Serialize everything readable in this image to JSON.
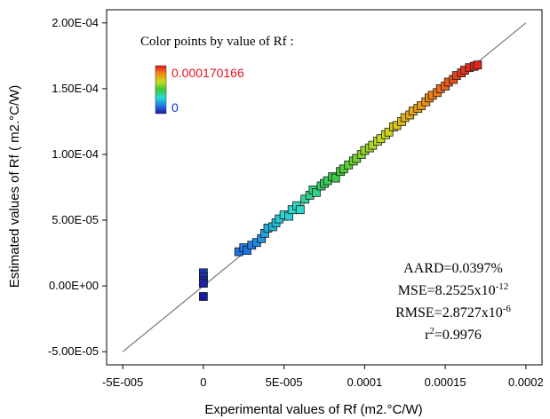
{
  "chart_data": {
    "type": "scatter",
    "xlabel": "Experimental values of Rf (m2.°C/W)",
    "ylabel": "Estimated values of Rf ( m2.°C/W)",
    "xlim": [
      -6e-05,
      0.00021
    ],
    "ylim": [
      -6e-05,
      0.00021
    ],
    "x_ticks": [
      -5e-05,
      0,
      5e-05,
      0.0001,
      0.00015,
      0.0002
    ],
    "x_tick_labels": [
      "-5E-005",
      "0",
      "5E-005",
      "0.0001",
      "0.00015",
      "0.0002"
    ],
    "y_ticks": [
      -5e-05,
      0,
      5e-05,
      0.0001,
      0.00015,
      0.0002
    ],
    "y_tick_labels": [
      "-5.00E-05",
      "0.00E+00",
      "5.00E-05",
      "1.00E-04",
      "1.50E-04",
      "2.00E-04"
    ],
    "grid": false,
    "reference_line": {
      "type": "y=x",
      "from": -5e-05,
      "to": 0.0002
    },
    "color_scale": {
      "title": "Color points by value of Rf :",
      "max_label": "0.000170166",
      "min_label": "0",
      "max": 0.000170166,
      "min": 0,
      "colors": [
        "#1a1aa0",
        "#1e78e6",
        "#28dcd2",
        "#3cc83c",
        "#c8dc1e",
        "#f08c14",
        "#dc1e1e"
      ],
      "max_label_color": "#e0141e",
      "min_label_color": "#1432c8"
    },
    "series": [
      {
        "points": [
          [
            0,
            1e-05
          ],
          [
            0,
            7e-06
          ],
          [
            0,
            4e-06
          ],
          [
            0,
            2e-06
          ],
          [
            0,
            -8e-06
          ],
          [
            2.2e-05,
            2.6e-05
          ],
          [
            2.5e-05,
            2.9e-05
          ],
          [
            2.7e-05,
            2.7e-05
          ],
          [
            3e-05,
            3.1e-05
          ],
          [
            3.3e-05,
            3.3e-05
          ],
          [
            3.6e-05,
            3.6e-05
          ],
          [
            3.8e-05,
            4e-05
          ],
          [
            4e-05,
            4.4e-05
          ],
          [
            4.3e-05,
            4.5e-05
          ],
          [
            4.5e-05,
            4.8e-05
          ],
          [
            4.7e-05,
            5.1e-05
          ],
          [
            5e-05,
            5.4e-05
          ],
          [
            5.3e-05,
            5.3e-05
          ],
          [
            5.5e-05,
            5.8e-05
          ],
          [
            5.8e-05,
            6.1e-05
          ],
          [
            6e-05,
            5.8e-05
          ],
          [
            6.3e-05,
            6.6e-05
          ],
          [
            6.6e-05,
            6.9e-05
          ],
          [
            6.8e-05,
            7.3e-05
          ],
          [
            7e-05,
            7.1e-05
          ],
          [
            7.3e-05,
            7.6e-05
          ],
          [
            7.5e-05,
            7.8e-05
          ],
          [
            7.7e-05,
            8e-05
          ],
          [
            8e-05,
            8.3e-05
          ],
          [
            8.2e-05,
            8.2e-05
          ],
          [
            8.5e-05,
            8.7e-05
          ],
          [
            8.7e-05,
            8.9e-05
          ],
          [
            9e-05,
            9.2e-05
          ],
          [
            9.3e-05,
            9.5e-05
          ],
          [
            9.5e-05,
            9.7e-05
          ],
          [
            9.8e-05,
            0.0001
          ],
          [
            0.0001,
            0.000103
          ],
          [
            0.000103,
            0.000105
          ],
          [
            0.000105,
            0.000107
          ],
          [
            0.000108,
            0.00011
          ],
          [
            0.00011,
            0.000112
          ],
          [
            0.000113,
            0.000115
          ],
          [
            0.000115,
            0.000117
          ],
          [
            0.000118,
            0.000121
          ],
          [
            0.00012,
            0.000122
          ],
          [
            0.000123,
            0.000125
          ],
          [
            0.000125,
            0.000128
          ],
          [
            0.000128,
            0.00013
          ],
          [
            0.00013,
            0.000133
          ],
          [
            0.000133,
            0.000135
          ],
          [
            0.000135,
            0.000137
          ],
          [
            0.000138,
            0.00014
          ],
          [
            0.00014,
            0.000143
          ],
          [
            0.000142,
            0.000145
          ],
          [
            0.000145,
            0.000147
          ],
          [
            0.000147,
            0.00015
          ],
          [
            0.00015,
            0.000152
          ],
          [
            0.000152,
            0.000155
          ],
          [
            0.000155,
            0.000157
          ],
          [
            0.000157,
            0.00016
          ],
          [
            0.00016,
            0.000162
          ],
          [
            0.000162,
            0.000164
          ],
          [
            0.000165,
            0.000166
          ],
          [
            0.000168,
            0.000167
          ],
          [
            0.00017,
            0.000168
          ]
        ]
      }
    ],
    "annotation": {
      "aard": "AARD=0.0397%",
      "mse_base": "MSE=8.2525x10",
      "mse_exp": "-12",
      "rmse_base": "RMSE=2.8727x10",
      "rmse_exp": "-6",
      "r2_base": "r",
      "r2_exp": "2",
      "r2_rest": "=0.9976"
    }
  }
}
